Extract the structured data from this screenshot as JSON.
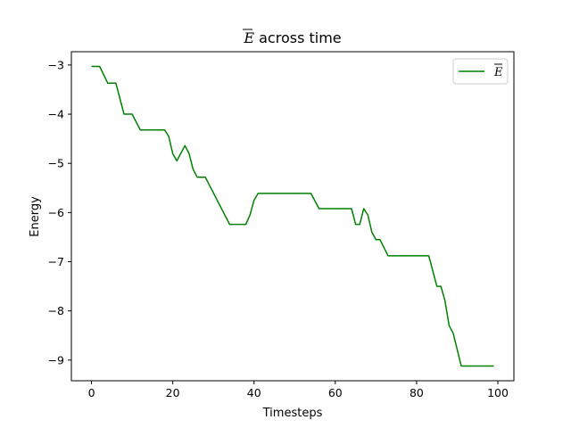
{
  "chart_data": {
    "type": "line",
    "title": "E across time",
    "title_overline": "E",
    "title_rest": " across time",
    "xlabel": "Timesteps",
    "ylabel": "Energy",
    "xlim": [
      -4.95,
      103.95
    ],
    "ylim": [
      -9.42,
      -2.73
    ],
    "xticks": [
      0,
      20,
      40,
      60,
      80,
      100
    ],
    "yticks": [
      -3,
      -4,
      -5,
      -6,
      -7,
      -8,
      -9
    ],
    "grid": false,
    "legend_position": "upper right",
    "series": [
      {
        "name": "E",
        "color": "#008000",
        "x": [
          0,
          2,
          4,
          6,
          8,
          10,
          12,
          18,
          19,
          20,
          21,
          23,
          24,
          25,
          26,
          28,
          34,
          38,
          39,
          40,
          41,
          54,
          56,
          64,
          65,
          66,
          67,
          68,
          69,
          70,
          71,
          73,
          83,
          85,
          86,
          87,
          88,
          89,
          91,
          99
        ],
        "y": [
          -3.03,
          -3.03,
          -3.37,
          -3.37,
          -4.0,
          -4.0,
          -4.32,
          -4.32,
          -4.45,
          -4.8,
          -4.95,
          -4.64,
          -4.8,
          -5.12,
          -5.28,
          -5.28,
          -6.24,
          -6.24,
          -6.05,
          -5.75,
          -5.61,
          -5.61,
          -5.92,
          -5.92,
          -6.24,
          -6.24,
          -5.92,
          -6.05,
          -6.4,
          -6.55,
          -6.55,
          -6.88,
          -6.88,
          -7.5,
          -7.5,
          -7.8,
          -8.3,
          -8.45,
          -9.12,
          -9.12
        ]
      }
    ]
  }
}
